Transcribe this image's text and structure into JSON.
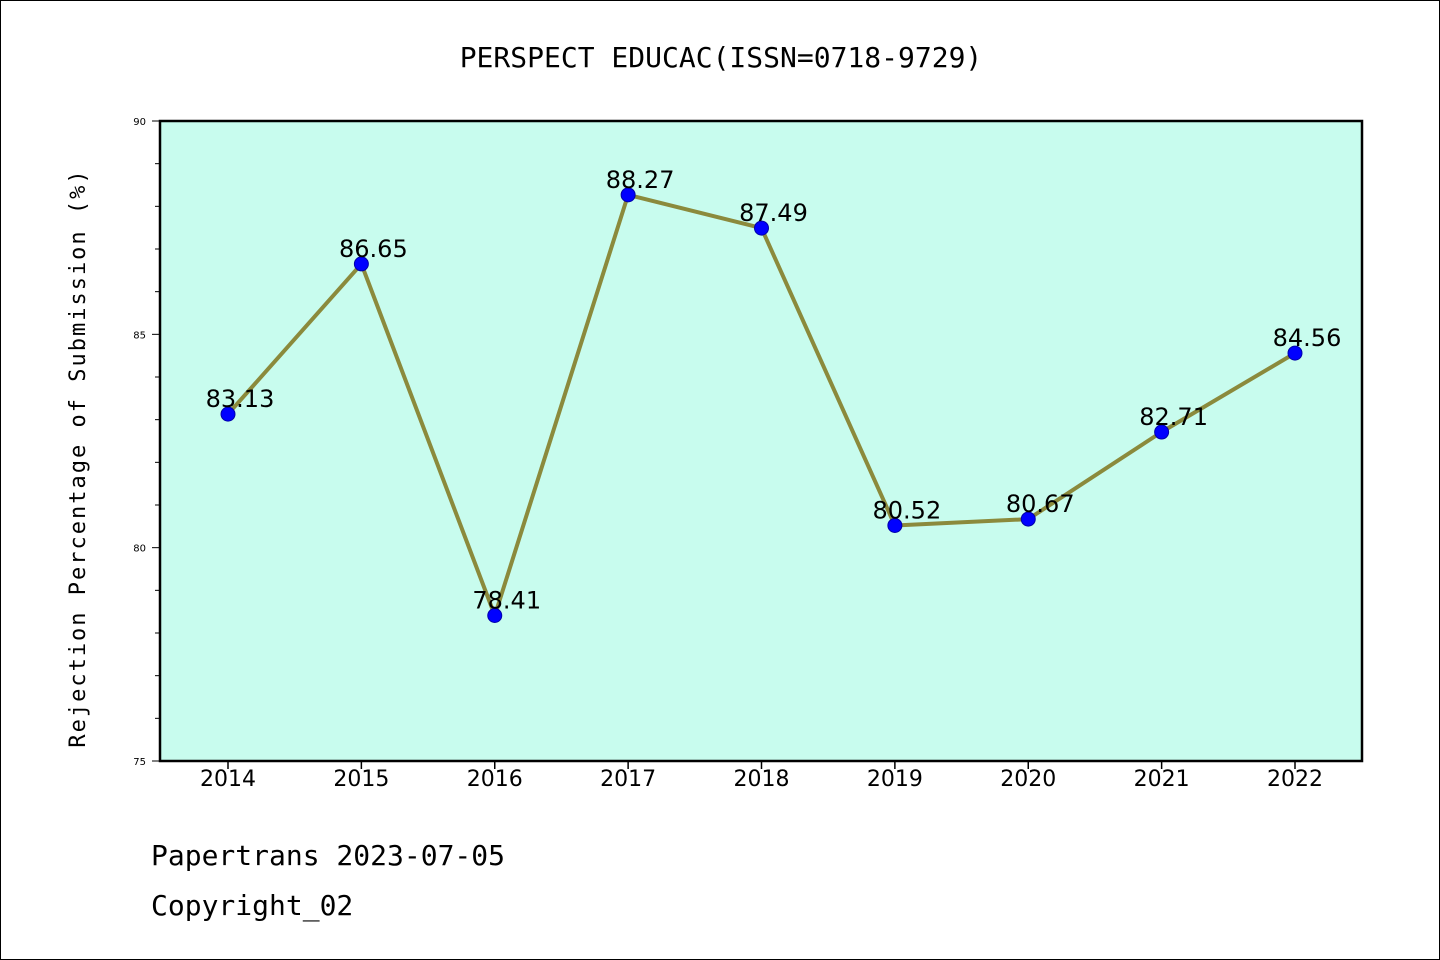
{
  "chart_data": {
    "type": "line",
    "title": "PERSPECT EDUCAC(ISSN=0718-9729)",
    "ylabel": "Rejection Percentage of Submission (%)",
    "xlabel": "",
    "categories": [
      "2014",
      "2015",
      "2016",
      "2017",
      "2018",
      "2019",
      "2020",
      "2021",
      "2022"
    ],
    "values": [
      83.13,
      86.65,
      78.41,
      88.27,
      87.49,
      80.52,
      80.67,
      82.71,
      84.56
    ],
    "data_labels": [
      "83.13",
      "86.65",
      "78.41",
      "88.27",
      "87.49",
      "80.52",
      "80.67",
      "82.71",
      "84.56"
    ],
    "ylim": [
      75,
      90
    ],
    "y_ticks": [
      75,
      80,
      85,
      90
    ],
    "y_tick_labels": [
      "75",
      "80",
      "85",
      "90"
    ],
    "y_minor_step": 1,
    "grid": false,
    "legend": "none"
  },
  "colors": {
    "plot_background": "#c8fcee",
    "line": "#8b8a3c",
    "marker": "#0000ff",
    "marker_edge": "#0000aa",
    "axis": "#000000"
  },
  "footer": {
    "line1": "Papertrans 2023-07-05",
    "line2": "Copyright_02"
  }
}
